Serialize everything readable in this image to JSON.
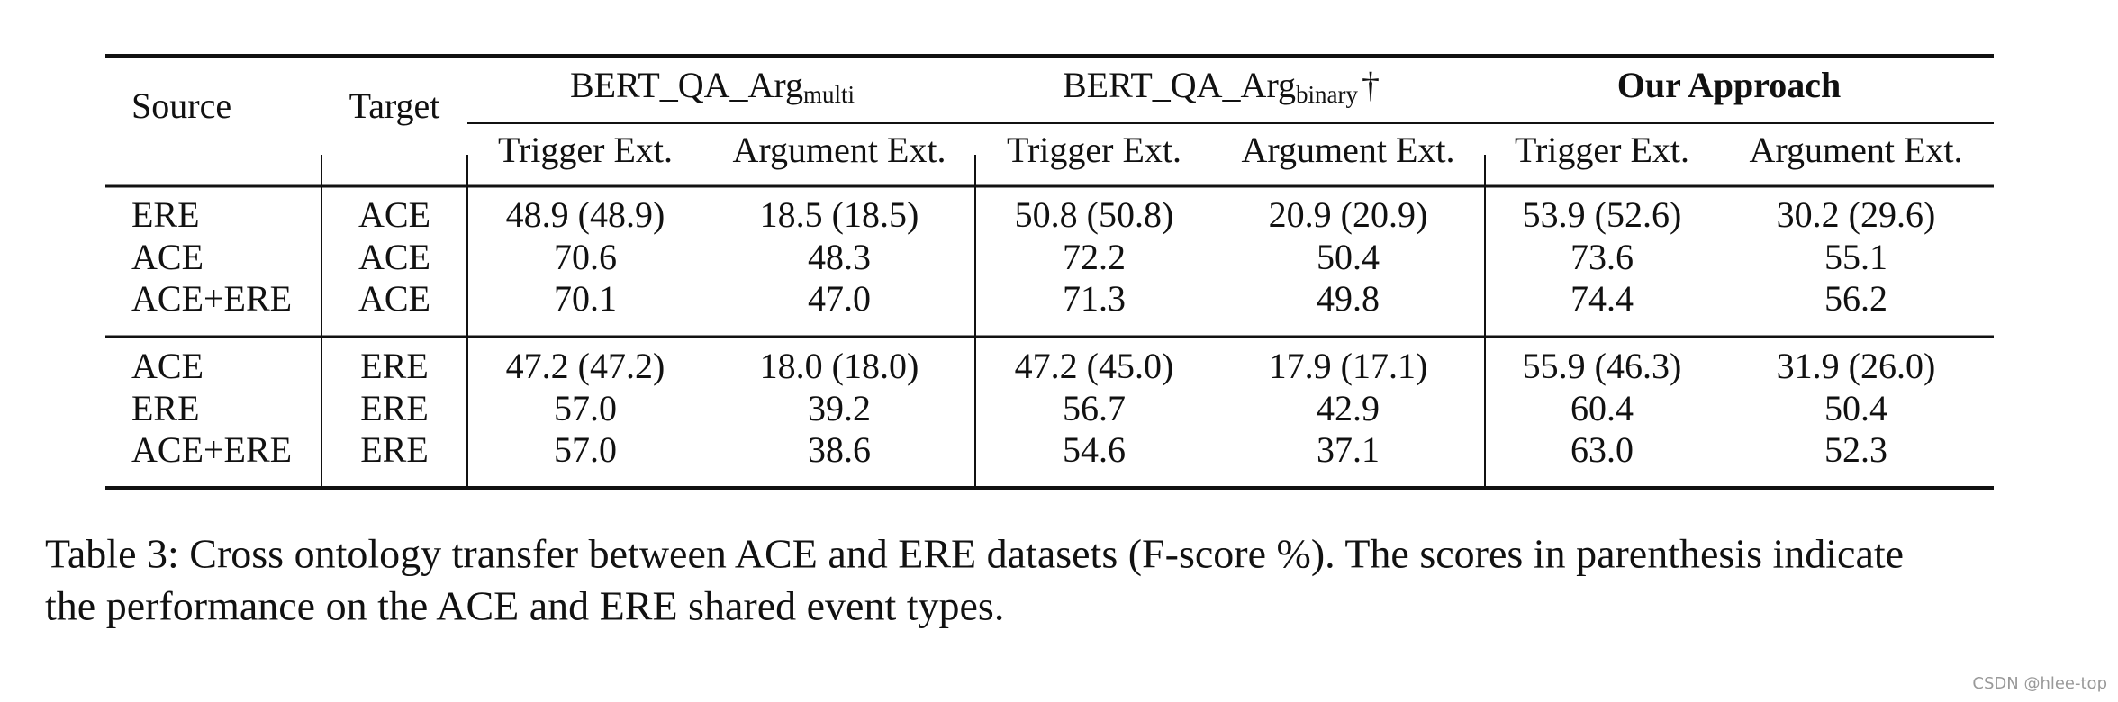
{
  "table": {
    "header": {
      "source": "Source",
      "target": "Target",
      "groups": [
        {
          "name": "BERT_QA_Arg",
          "subscript": "multi",
          "columns": [
            "Trigger Ext.",
            "Argument Ext."
          ]
        },
        {
          "name": "BERT_QA_Arg",
          "subscript": "binary",
          "mark": "†",
          "columns": [
            "Trigger Ext.",
            "Argument Ext."
          ]
        },
        {
          "name": "Our Approach",
          "bold": true,
          "columns": [
            "Trigger Ext.",
            "Argument Ext."
          ]
        }
      ]
    },
    "sections": [
      [
        [
          "ERE",
          "ACE",
          "48.9 (48.9)",
          "18.5 (18.5)",
          "50.8 (50.8)",
          "20.9 (20.9)",
          "53.9 (52.6)",
          "30.2 (29.6)"
        ],
        [
          "ACE",
          "ACE",
          "70.6",
          "48.3",
          "72.2",
          "50.4",
          "73.6",
          "55.1"
        ],
        [
          "ACE+ERE",
          "ACE",
          "70.1",
          "47.0",
          "71.3",
          "49.8",
          "74.4",
          "56.2"
        ]
      ],
      [
        [
          "ACE",
          "ERE",
          "47.2 (47.2)",
          "18.0 (18.0)",
          "47.2 (45.0)",
          "17.9 (17.1)",
          "55.9 (46.3)",
          "31.9 (26.0)"
        ],
        [
          "ERE",
          "ERE",
          "57.0",
          "39.2",
          "56.7",
          "42.9",
          "60.4",
          "50.4"
        ],
        [
          "ACE+ERE",
          "ERE",
          "57.0",
          "38.6",
          "54.6",
          "37.1",
          "63.0",
          "52.3"
        ]
      ]
    ]
  },
  "caption": [
    "Table 3: Cross ontology transfer between ACE and ERE datasets (F-score %). The scores in parenthesis indicate",
    "the performance on the ACE and ERE shared event types."
  ],
  "watermark": "CSDN @hlee-top"
}
